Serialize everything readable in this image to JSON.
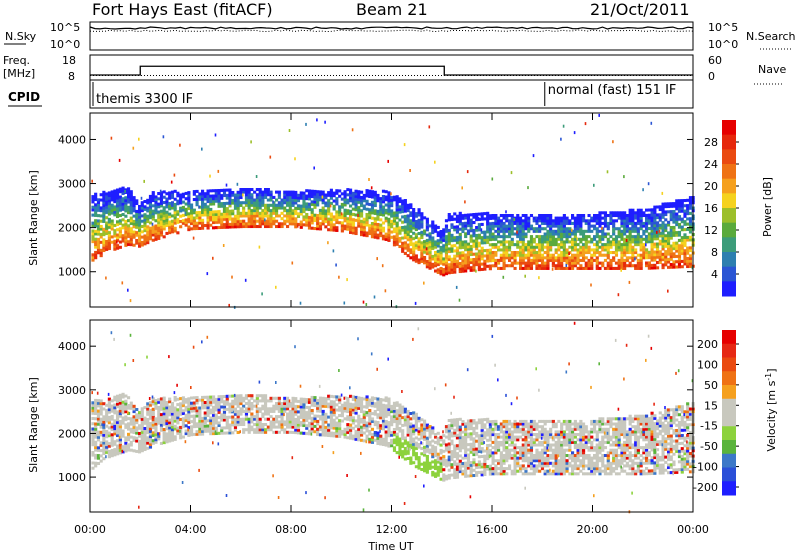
{
  "header": {
    "title": "Fort Hays East (fitACF)",
    "beam": "Beam 21",
    "date": "21/Oct/2011"
  },
  "noise_panel": {
    "left_label": "N.Sky",
    "left_ticks": [
      "10^5",
      "10^0"
    ],
    "right_ticks": [
      "10^5",
      "10^0"
    ],
    "right_label": "N.Search"
  },
  "freq_panel": {
    "left_label_1": "Freq.",
    "left_label_2": "[MHz]",
    "left_ticks": [
      "18",
      "8"
    ],
    "right_ticks": [
      "60",
      "0"
    ],
    "right_label": "Nave"
  },
  "cpid": {
    "label": "CPID",
    "mode1": "themis 3300 IF",
    "mode2": "normal (fast) 151 IF",
    "mode2_start_hours": 18.1
  },
  "x_axis": {
    "label": "Time UT",
    "ticks": [
      "00:00",
      "04:00",
      "08:00",
      "12:00",
      "16:00",
      "20:00",
      "00:00"
    ],
    "range_hours": [
      0,
      24
    ]
  },
  "chart_data": [
    {
      "type": "heatmap",
      "title": "",
      "xlabel": "Time UT",
      "ylabel": "Slant Range [km]",
      "xlim_hours": [
        0,
        24
      ],
      "ylim": [
        200,
        4600
      ],
      "yticks": [
        "1000",
        "2000",
        "3000",
        "4000"
      ],
      "colorbar": {
        "label": "Power [dB]",
        "ticks": [
          "4",
          "8",
          "12",
          "16",
          "20",
          "24",
          "28"
        ],
        "range": [
          0,
          32
        ],
        "colors": [
          "#1e1eff",
          "#2a55d4",
          "#2d7fb0",
          "#3c9c7a",
          "#5aaa3c",
          "#9cbf2a",
          "#f5d21e",
          "#f5a01e",
          "#ef7214",
          "#ea4a10",
          "#e6280c",
          "#e60000"
        ]
      },
      "echo_band_lower_km": [
        [
          0,
          1150
        ],
        [
          0.5,
          1400
        ],
        [
          1.5,
          1600
        ],
        [
          1.9,
          1550
        ],
        [
          2.5,
          1700
        ],
        [
          4,
          1950
        ],
        [
          6,
          2000
        ],
        [
          8,
          2000
        ],
        [
          10,
          1900
        ],
        [
          11.8,
          1700
        ],
        [
          12.8,
          1250
        ],
        [
          14,
          900
        ],
        [
          14.2,
          950
        ],
        [
          15,
          1000
        ],
        [
          16,
          1050
        ],
        [
          18,
          1050
        ],
        [
          20,
          1050
        ],
        [
          22,
          1050
        ],
        [
          24,
          1100
        ]
      ],
      "echo_band_upper_km": [
        [
          0,
          2700
        ],
        [
          0.5,
          2800
        ],
        [
          1.5,
          2900
        ],
        [
          1.9,
          2500
        ],
        [
          2.5,
          2800
        ],
        [
          4,
          2800
        ],
        [
          6,
          2900
        ],
        [
          8,
          2800
        ],
        [
          10,
          2850
        ],
        [
          11.8,
          2800
        ],
        [
          12.8,
          2500
        ],
        [
          14,
          1900
        ],
        [
          14.2,
          2300
        ],
        [
          15,
          2300
        ],
        [
          16,
          2300
        ],
        [
          18,
          2300
        ],
        [
          20,
          2300
        ],
        [
          22,
          2400
        ],
        [
          24,
          2700
        ]
      ]
    },
    {
      "type": "heatmap",
      "title": "",
      "xlabel": "Time UT",
      "ylabel": "Slant Range [km]",
      "xlim_hours": [
        0,
        24
      ],
      "ylim": [
        200,
        4600
      ],
      "yticks": [
        "1000",
        "2000",
        "3000",
        "4000"
      ],
      "colorbar": {
        "label": "Velocity [m s^-1]",
        "ticks": [
          "200",
          "100",
          "50",
          "15",
          "-15",
          "-50",
          "-100",
          "-200"
        ],
        "colors": [
          "#1e1eff",
          "#2a4fd8",
          "#3c78c8",
          "#5ab43c",
          "#8cd23c",
          "#c8c8be",
          "#c8c8be",
          "#f5a01e",
          "#ef7214",
          "#ea4a10",
          "#e62814",
          "#e60000"
        ]
      }
    }
  ]
}
